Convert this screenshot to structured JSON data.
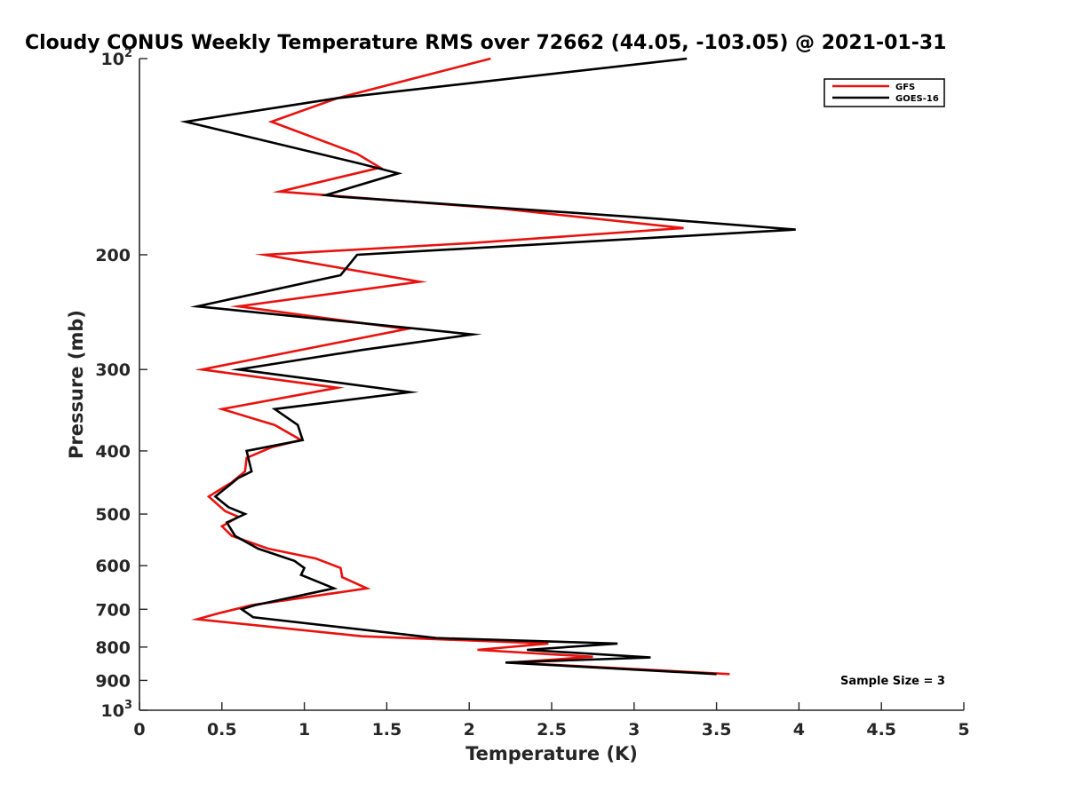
{
  "chart_data": {
    "type": "line",
    "title": "Cloudy CONUS Weekly Temperature RMS over 72662 (44.05, -103.05) @ 2021-01-31",
    "xlabel": "Temperature (K)",
    "ylabel": "Pressure (mb)",
    "xlim": [
      0,
      5
    ],
    "ylim": [
      100,
      1000
    ],
    "y_scale": "log",
    "y_reversed": true,
    "grid": false,
    "legend_position": "top-right",
    "x_ticks": [
      0,
      0.5,
      1,
      1.5,
      2,
      2.5,
      3,
      3.5,
      4,
      4.5,
      5
    ],
    "x_tick_labels": [
      "0",
      "0.5",
      "1",
      "1.5",
      "2",
      "2.5",
      "3",
      "3.5",
      "4",
      "4.5",
      "5"
    ],
    "y_ticks": [
      {
        "value": 100,
        "base": "10",
        "exp": "2"
      },
      {
        "value": 200,
        "label": "200"
      },
      {
        "value": 300,
        "label": "300"
      },
      {
        "value": 400,
        "label": "400"
      },
      {
        "value": 500,
        "label": "500"
      },
      {
        "value": 600,
        "label": "600"
      },
      {
        "value": 700,
        "label": "700"
      },
      {
        "value": 800,
        "label": "800"
      },
      {
        "value": 900,
        "label": "900"
      },
      {
        "value": 1000,
        "base": "10",
        "exp": "3"
      }
    ],
    "series": [
      {
        "name": "GFS",
        "color": "#e8120e",
        "points": [
          {
            "x": 2.13,
            "p": 100
          },
          {
            "x": 1.2,
            "p": 115
          },
          {
            "x": 0.8,
            "p": 125
          },
          {
            "x": 1.32,
            "p": 140
          },
          {
            "x": 1.46,
            "p": 147
          },
          {
            "x": 0.85,
            "p": 160
          },
          {
            "x": 2.2,
            "p": 170
          },
          {
            "x": 3.3,
            "p": 182
          },
          {
            "x": 2.0,
            "p": 192
          },
          {
            "x": 0.76,
            "p": 200
          },
          {
            "x": 1.7,
            "p": 220
          },
          {
            "x": 0.6,
            "p": 240
          },
          {
            "x": 1.62,
            "p": 260
          },
          {
            "x": 0.38,
            "p": 300
          },
          {
            "x": 1.2,
            "p": 320
          },
          {
            "x": 0.5,
            "p": 345
          },
          {
            "x": 0.82,
            "p": 365
          },
          {
            "x": 0.98,
            "p": 385
          },
          {
            "x": 0.8,
            "p": 395
          },
          {
            "x": 0.65,
            "p": 410
          },
          {
            "x": 0.64,
            "p": 430
          },
          {
            "x": 0.56,
            "p": 447
          },
          {
            "x": 0.42,
            "p": 470
          },
          {
            "x": 0.52,
            "p": 495
          },
          {
            "x": 0.6,
            "p": 505
          },
          {
            "x": 0.5,
            "p": 522
          },
          {
            "x": 0.56,
            "p": 540
          },
          {
            "x": 0.78,
            "p": 565
          },
          {
            "x": 1.07,
            "p": 585
          },
          {
            "x": 1.22,
            "p": 605
          },
          {
            "x": 1.23,
            "p": 625
          },
          {
            "x": 1.38,
            "p": 650
          },
          {
            "x": 0.68,
            "p": 690
          },
          {
            "x": 0.48,
            "p": 710
          },
          {
            "x": 0.35,
            "p": 725
          },
          {
            "x": 1.35,
            "p": 770
          },
          {
            "x": 2.48,
            "p": 790
          },
          {
            "x": 2.05,
            "p": 808
          },
          {
            "x": 2.75,
            "p": 828
          },
          {
            "x": 2.25,
            "p": 845
          },
          {
            "x": 3.58,
            "p": 880
          }
        ]
      },
      {
        "name": "GOES-16",
        "color": "#000000",
        "points": [
          {
            "x": 3.32,
            "p": 100
          },
          {
            "x": 1.2,
            "p": 115
          },
          {
            "x": 0.28,
            "p": 125
          },
          {
            "x": 1.34,
            "p": 145
          },
          {
            "x": 1.57,
            "p": 150
          },
          {
            "x": 1.13,
            "p": 162
          },
          {
            "x": 1.22,
            "p": 163
          },
          {
            "x": 3.0,
            "p": 175
          },
          {
            "x": 3.98,
            "p": 183
          },
          {
            "x": 1.32,
            "p": 200
          },
          {
            "x": 1.22,
            "p": 215
          },
          {
            "x": 0.35,
            "p": 240
          },
          {
            "x": 2.02,
            "p": 265
          },
          {
            "x": 1.35,
            "p": 280
          },
          {
            "x": 0.6,
            "p": 300
          },
          {
            "x": 1.64,
            "p": 325
          },
          {
            "x": 0.82,
            "p": 345
          },
          {
            "x": 0.96,
            "p": 365
          },
          {
            "x": 0.99,
            "p": 385
          },
          {
            "x": 0.65,
            "p": 400
          },
          {
            "x": 0.68,
            "p": 430
          },
          {
            "x": 0.6,
            "p": 440
          },
          {
            "x": 0.46,
            "p": 470
          },
          {
            "x": 0.54,
            "p": 488
          },
          {
            "x": 0.64,
            "p": 500
          },
          {
            "x": 0.53,
            "p": 515
          },
          {
            "x": 0.58,
            "p": 540
          },
          {
            "x": 0.72,
            "p": 565
          },
          {
            "x": 0.94,
            "p": 590
          },
          {
            "x": 1.0,
            "p": 605
          },
          {
            "x": 0.98,
            "p": 620
          },
          {
            "x": 1.18,
            "p": 650
          },
          {
            "x": 0.7,
            "p": 690
          },
          {
            "x": 0.62,
            "p": 700
          },
          {
            "x": 0.69,
            "p": 720
          },
          {
            "x": 1.8,
            "p": 775
          },
          {
            "x": 2.9,
            "p": 790
          },
          {
            "x": 2.35,
            "p": 808
          },
          {
            "x": 3.1,
            "p": 830
          },
          {
            "x": 2.22,
            "p": 845
          },
          {
            "x": 3.5,
            "p": 880
          }
        ]
      }
    ],
    "annotation": "Sample Size = 3"
  }
}
